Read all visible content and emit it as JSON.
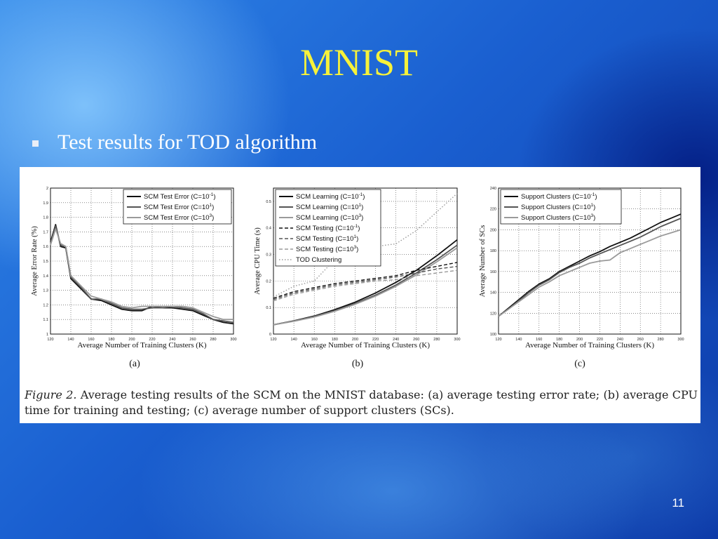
{
  "slide": {
    "title": "MNIST",
    "bullet": "Test results for TOD algorithm",
    "page_number": "11"
  },
  "figure": {
    "caption_prefix": "Figure 2.",
    "caption_text": "Average testing results of the SCM on the MNIST database: (a) average testing error rate; (b) average CPU time for training and testing; (c) average number of support clusters (SCs)."
  },
  "colors": {
    "title": "#f7f23a",
    "dark_series": "#111111",
    "mid_series": "#555555",
    "light_series": "#9a9a9a"
  },
  "chart_data": [
    {
      "id": "a",
      "type": "line",
      "panel_label": "(a)",
      "xlabel": "Average Number of Training Clusters (K)",
      "ylabel": "Average Error Rate (%)",
      "xlim": [
        120,
        300
      ],
      "ylim": [
        1,
        2
      ],
      "xticks": [
        "120",
        "140",
        "160",
        "180",
        "200",
        "220",
        "240",
        "260",
        "280",
        "300"
      ],
      "yticks": [
        "1",
        "1.1",
        "1.2",
        "1.3",
        "1.4",
        "1.5",
        "1.6",
        "1.7",
        "1.8",
        "1.9",
        "2"
      ],
      "grid": true,
      "legend_position": "top-right",
      "x": [
        120,
        125,
        130,
        135,
        140,
        150,
        160,
        170,
        180,
        190,
        200,
        210,
        220,
        230,
        240,
        250,
        260,
        270,
        280,
        290,
        300
      ],
      "series": [
        {
          "name": "SCM Test Error (C=10",
          "sup": "-1",
          "close": ")",
          "style": "dark",
          "values": [
            1.63,
            1.75,
            1.6,
            1.59,
            1.38,
            1.31,
            1.24,
            1.23,
            1.2,
            1.17,
            1.16,
            1.16,
            1.19,
            1.18,
            1.18,
            1.17,
            1.16,
            1.13,
            1.1,
            1.08,
            1.07
          ]
        },
        {
          "name": "SCM Test Error (C=10",
          "sup": "1",
          "close": ")",
          "style": "mid",
          "values": [
            1.62,
            1.74,
            1.61,
            1.6,
            1.39,
            1.32,
            1.24,
            1.24,
            1.21,
            1.18,
            1.17,
            1.17,
            1.18,
            1.18,
            1.19,
            1.18,
            1.17,
            1.14,
            1.1,
            1.09,
            1.08
          ]
        },
        {
          "name": "SCM Test Error (C=10",
          "sup": "3",
          "close": ")",
          "style": "light",
          "values": [
            1.61,
            1.72,
            1.62,
            1.6,
            1.4,
            1.33,
            1.26,
            1.24,
            1.22,
            1.19,
            1.18,
            1.19,
            1.19,
            1.19,
            1.19,
            1.19,
            1.18,
            1.15,
            1.12,
            1.1,
            1.1
          ]
        }
      ]
    },
    {
      "id": "b",
      "type": "line",
      "panel_label": "(b)",
      "xlabel": "Average Number of Training Clusters (K)",
      "ylabel": "Average CPU Time (s)",
      "xlim": [
        120,
        300
      ],
      "ylim": [
        0,
        0.55
      ],
      "xticks": [
        "120",
        "140",
        "160",
        "180",
        "200",
        "220",
        "240",
        "260",
        "280",
        "300"
      ],
      "yticks": [
        "0",
        "0.1",
        "0.2",
        "0.3",
        "0.4",
        "0.5"
      ],
      "grid": true,
      "legend_position": "top-left",
      "x": [
        120,
        140,
        160,
        180,
        200,
        220,
        240,
        260,
        280,
        300
      ],
      "series": [
        {
          "name": "SCM Learning (C=10",
          "sup": "-1",
          "close": ")",
          "style": "dark",
          "values": [
            0.035,
            0.05,
            0.068,
            0.092,
            0.12,
            0.155,
            0.195,
            0.24,
            0.295,
            0.355
          ]
        },
        {
          "name": "SCM Learning (C=10",
          "sup": "1",
          "close": ")",
          "style": "mid",
          "values": [
            0.035,
            0.049,
            0.066,
            0.088,
            0.115,
            0.147,
            0.185,
            0.23,
            0.28,
            0.335
          ]
        },
        {
          "name": "SCM Learning (C=10",
          "sup": "3",
          "close": ")",
          "style": "light",
          "values": [
            0.035,
            0.048,
            0.064,
            0.086,
            0.112,
            0.143,
            0.18,
            0.223,
            0.272,
            0.325
          ]
        },
        {
          "name": "SCM Testing (C=10",
          "sup": "-1",
          "close": ")",
          "style": "dark-dash",
          "values": [
            0.135,
            0.16,
            0.175,
            0.19,
            0.2,
            0.21,
            0.22,
            0.24,
            0.255,
            0.27
          ]
        },
        {
          "name": "SCM Testing (C=10",
          "sup": "1",
          "close": ")",
          "style": "mid-dash",
          "values": [
            0.13,
            0.155,
            0.17,
            0.185,
            0.195,
            0.205,
            0.215,
            0.23,
            0.245,
            0.255
          ]
        },
        {
          "name": "SCM Testing (C=10",
          "sup": "3",
          "close": ")",
          "style": "light-dash",
          "values": [
            0.125,
            0.15,
            0.165,
            0.18,
            0.19,
            0.2,
            0.205,
            0.22,
            0.23,
            0.24
          ]
        },
        {
          "name": "TOD Clustering",
          "sup": "",
          "close": "",
          "style": "dotted",
          "values": [
            0.14,
            0.18,
            0.2,
            0.28,
            0.35,
            0.33,
            0.34,
            0.39,
            0.46,
            0.53
          ]
        }
      ]
    },
    {
      "id": "c",
      "type": "line",
      "panel_label": "(c)",
      "xlabel": "Average Number of Training Clusters (K)",
      "ylabel": "Average Number of SCs",
      "xlim": [
        120,
        300
      ],
      "ylim": [
        100,
        240
      ],
      "xticks": [
        "120",
        "140",
        "160",
        "180",
        "200",
        "220",
        "240",
        "260",
        "280",
        "300"
      ],
      "yticks": [
        "100",
        "120",
        "140",
        "160",
        "180",
        "200",
        "220",
        "240"
      ],
      "grid": true,
      "legend_position": "top-left",
      "x": [
        120,
        130,
        140,
        150,
        160,
        170,
        180,
        190,
        200,
        210,
        220,
        230,
        240,
        250,
        260,
        270,
        280,
        290,
        300
      ],
      "series": [
        {
          "name": "Support Clusters (C=10",
          "sup": "-1",
          "close": ")",
          "style": "dark",
          "values": [
            117,
            125,
            133,
            141,
            148,
            153,
            160,
            165,
            170,
            175,
            179,
            184,
            188,
            192,
            197,
            202,
            207,
            211,
            215
          ]
        },
        {
          "name": "Support Clusters (C=10",
          "sup": "1",
          "close": ")",
          "style": "mid",
          "values": [
            117,
            124,
            132,
            140,
            147,
            152,
            159,
            164,
            168,
            173,
            177,
            181,
            185,
            189,
            193,
            198,
            203,
            207,
            211
          ]
        },
        {
          "name": "Support Clusters (C=10",
          "sup": "3",
          "close": ")",
          "style": "light",
          "values": [
            117,
            124,
            131,
            138,
            145,
            150,
            156,
            160,
            164,
            168,
            170,
            171,
            178,
            182,
            186,
            190,
            194,
            197,
            200
          ]
        }
      ]
    }
  ]
}
